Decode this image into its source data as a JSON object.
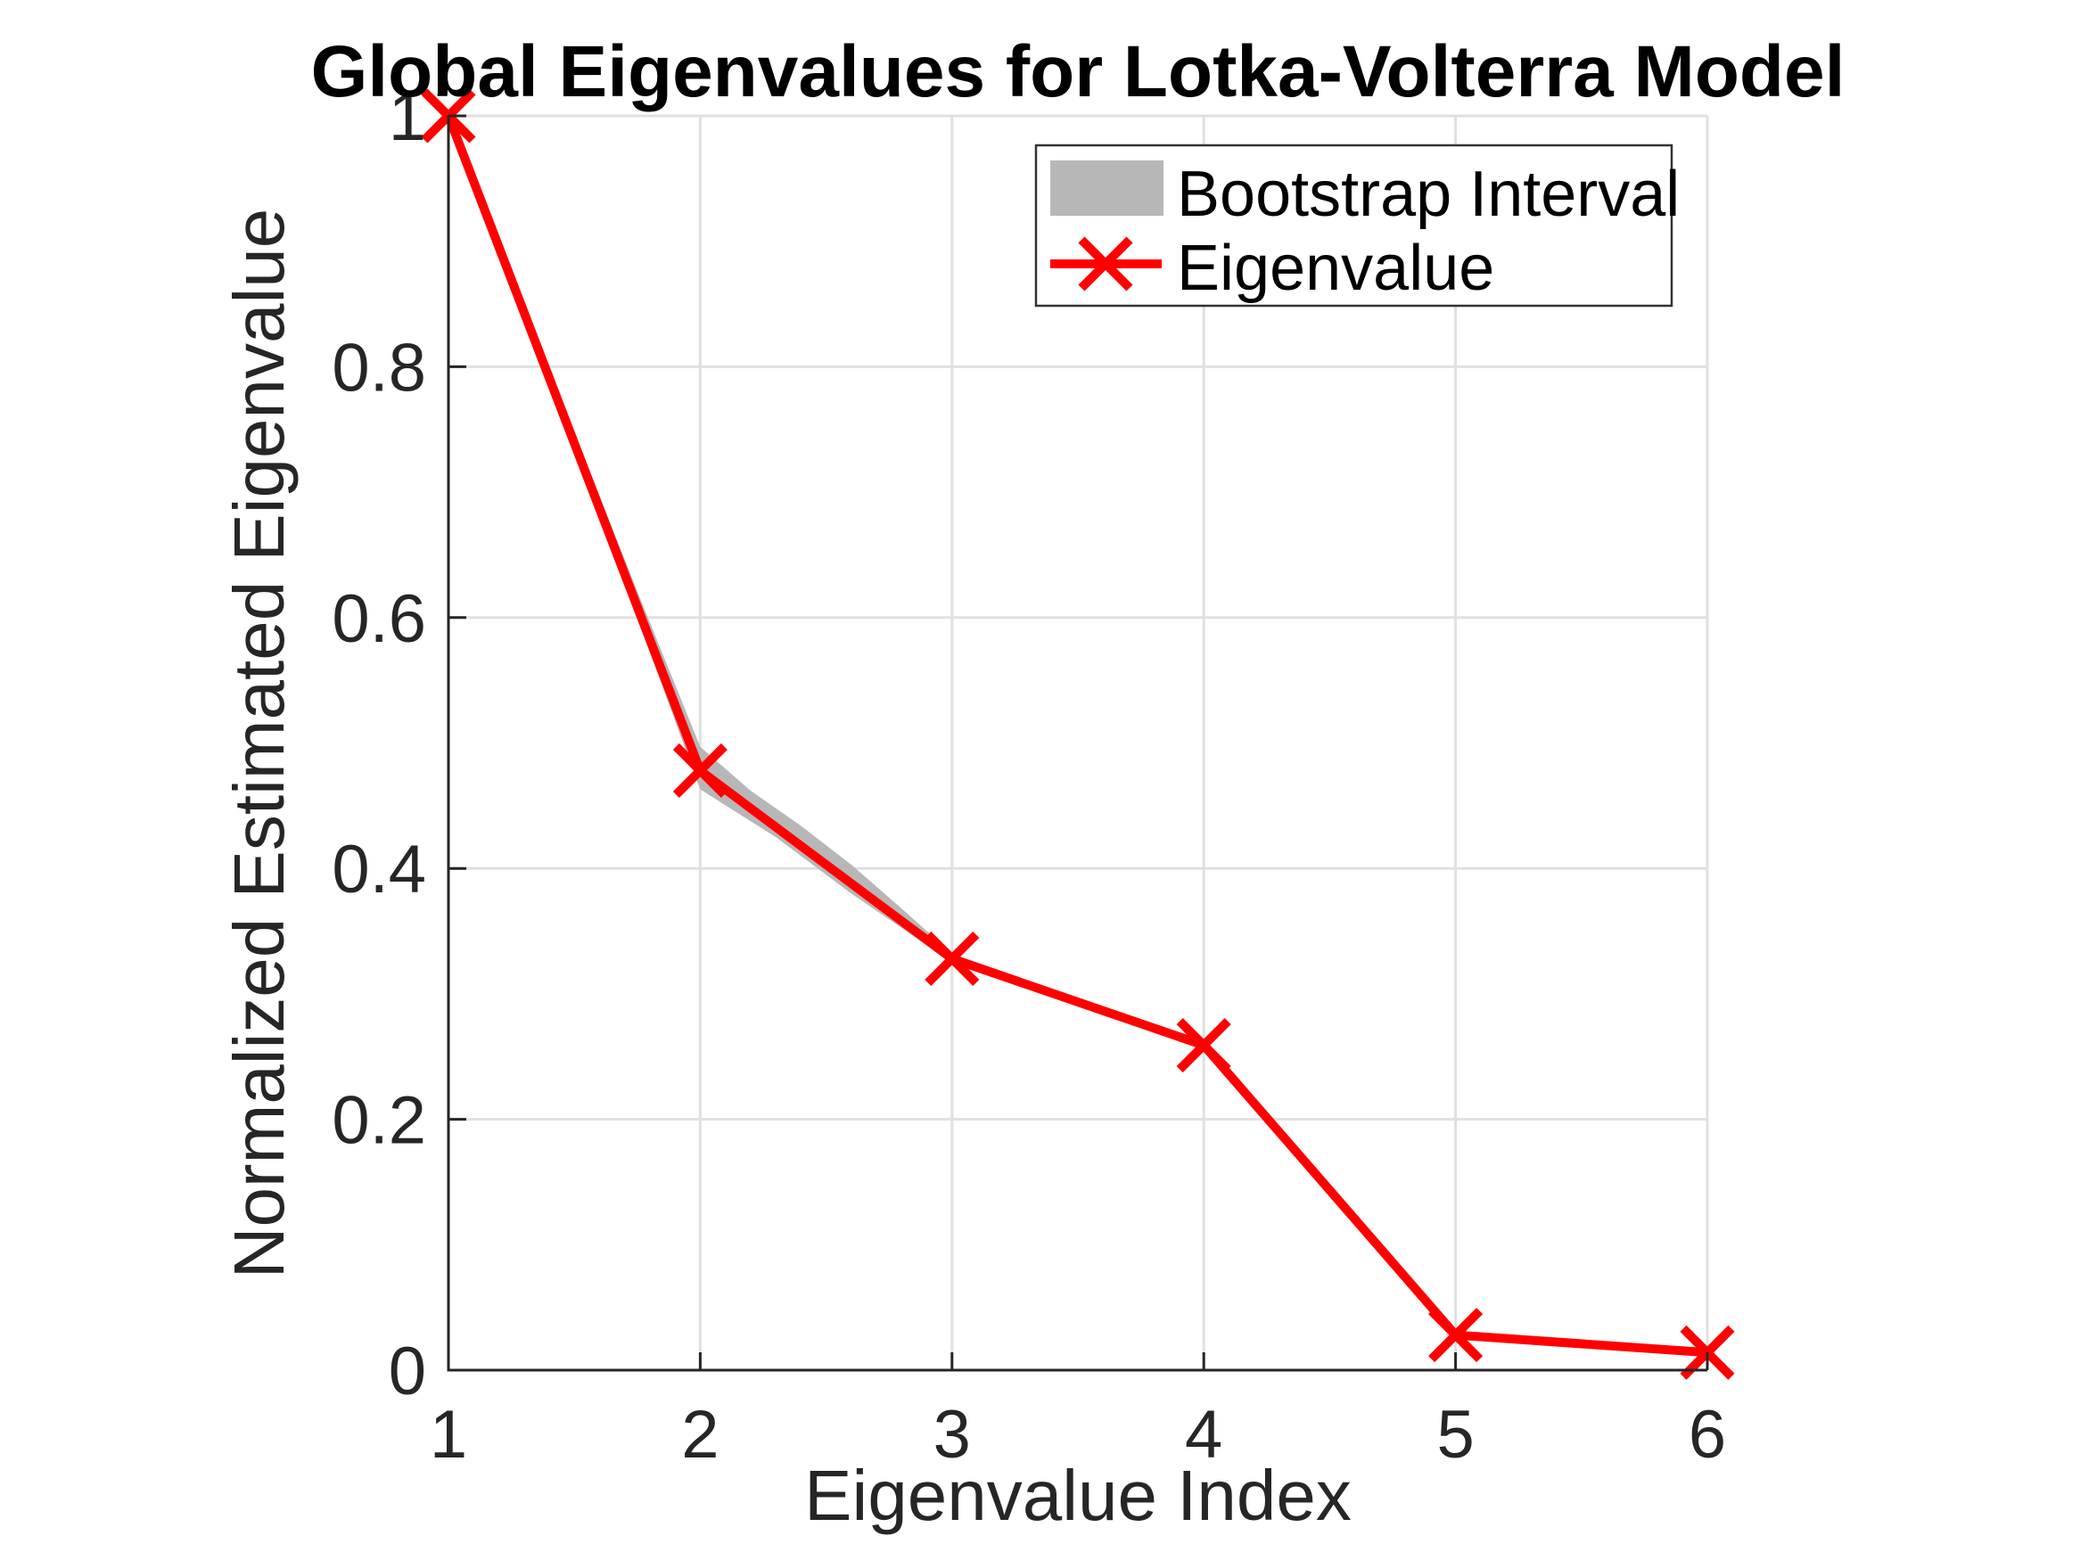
{
  "figure": {
    "background": "#ffffff"
  },
  "chart_data": {
    "type": "line",
    "title": "Global Eigenvalues for Lotka-Volterra Model",
    "xlabel": "Eigenvalue Index",
    "ylabel": "Normalized Estimated Eigenvalue",
    "x": [
      1,
      2,
      3,
      4,
      5,
      6
    ],
    "series": [
      {
        "name": "Eigenvalue",
        "values": [
          1.0,
          0.478,
          0.328,
          0.259,
          0.028,
          0.014
        ],
        "color": "#ff0000",
        "marker": "x",
        "line_width": 10,
        "marker_half_size": 27,
        "marker_stroke": 10
      }
    ],
    "band": {
      "name": "Bootstrap Interval",
      "color": "#b7b7b7",
      "upper": [
        [
          1,
          1.0
        ],
        [
          1.25,
          0.872
        ],
        [
          1.5,
          0.748
        ],
        [
          1.75,
          0.621
        ],
        [
          2,
          0.497
        ],
        [
          2.2,
          0.462
        ],
        [
          2.4,
          0.434
        ],
        [
          2.6,
          0.403
        ],
        [
          2.8,
          0.368
        ],
        [
          3,
          0.332
        ],
        [
          4,
          0.262
        ],
        [
          5,
          0.03
        ],
        [
          6,
          0.016
        ]
      ],
      "lower": [
        [
          1,
          0.998
        ],
        [
          1.5,
          0.736
        ],
        [
          2,
          0.463
        ],
        [
          2.3,
          0.425
        ],
        [
          2.6,
          0.38
        ],
        [
          3,
          0.325
        ],
        [
          4,
          0.256
        ],
        [
          5,
          0.026
        ],
        [
          6,
          0.012
        ]
      ]
    },
    "xlim": [
      1,
      6
    ],
    "ylim": [
      0,
      1
    ],
    "x_ticks": {
      "values": [
        1,
        2,
        3,
        4,
        5,
        6
      ],
      "labels": [
        "1",
        "2",
        "3",
        "4",
        "5",
        "6"
      ]
    },
    "y_ticks": {
      "values": [
        0,
        0.2,
        0.4,
        0.6,
        0.8,
        1
      ],
      "labels": [
        "0",
        "0.2",
        "0.4",
        "0.6",
        "0.8",
        "1"
      ]
    },
    "grid": true,
    "legend": {
      "position": "northeast",
      "entries": [
        {
          "label": "Bootstrap Interval",
          "swatch": "patch",
          "color": "#b7b7b7"
        },
        {
          "label": "Eigenvalue",
          "swatch": "line-x-marker",
          "color": "#ff0000"
        }
      ]
    },
    "colors": {
      "grid": "#e0e0e0",
      "axis": "#262626",
      "tick_text": "#262626",
      "title_text": "#000000",
      "legend_border": "#333333"
    }
  }
}
